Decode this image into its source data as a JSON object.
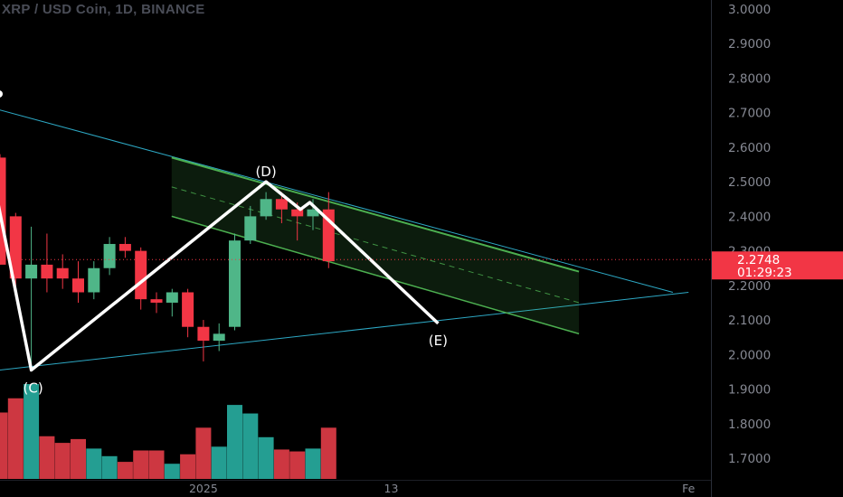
{
  "header": {
    "title": "XRP / USD Coin, 1D, BINANCE"
  },
  "price_badge": {
    "price": "2.2748",
    "countdown": "01:29:23",
    "color": "#f23645"
  },
  "wave_labels": [
    "(C)",
    "(D)",
    "(E)"
  ],
  "time_axis": {
    "ticks": [
      {
        "label": "2025",
        "bar": 13
      },
      {
        "label": "13",
        "bar": 25
      },
      {
        "label": "Fe",
        "bar": 44
      }
    ]
  },
  "colors": {
    "up": "#26a69a",
    "up_candle": "#4fb688",
    "down": "#f23645",
    "channel": "#4caf50",
    "trendline": "#2da8c4",
    "wave": "#ffffff",
    "background": "#000000",
    "axis_text": "#868993"
  },
  "chart_data": {
    "type": "candlestick",
    "title": "XRP / USD Coin, 1D, BINANCE",
    "y_axis": {
      "ticks": [
        1.7,
        1.8,
        1.9,
        2.0,
        2.1,
        2.2,
        2.3,
        2.4,
        2.5,
        2.6,
        2.7,
        2.8,
        2.9,
        3.0
      ],
      "range": [
        1.6,
        3.03
      ],
      "side": "right"
    },
    "x_axis": {
      "tick_labels": [
        "2025",
        "13",
        "Fe"
      ]
    },
    "last_price": 2.2748,
    "candles": [
      {
        "o": 2.57,
        "h": 2.58,
        "l": 2.26,
        "c": 2.26
      },
      {
        "o": 2.4,
        "h": 2.41,
        "l": 2.19,
        "c": 2.22
      },
      {
        "o": 2.22,
        "h": 2.37,
        "l": 1.96,
        "c": 2.26
      },
      {
        "o": 2.26,
        "h": 2.35,
        "l": 2.18,
        "c": 2.22
      },
      {
        "o": 2.25,
        "h": 2.29,
        "l": 2.19,
        "c": 2.22
      },
      {
        "o": 2.22,
        "h": 2.27,
        "l": 2.15,
        "c": 2.18
      },
      {
        "o": 2.18,
        "h": 2.27,
        "l": 2.16,
        "c": 2.25
      },
      {
        "o": 2.25,
        "h": 2.34,
        "l": 2.23,
        "c": 2.32
      },
      {
        "o": 2.32,
        "h": 2.34,
        "l": 2.28,
        "c": 2.3
      },
      {
        "o": 2.3,
        "h": 2.31,
        "l": 2.13,
        "c": 2.16
      },
      {
        "o": 2.16,
        "h": 2.18,
        "l": 2.12,
        "c": 2.15
      },
      {
        "o": 2.15,
        "h": 2.19,
        "l": 2.11,
        "c": 2.18
      },
      {
        "o": 2.18,
        "h": 2.19,
        "l": 2.05,
        "c": 2.08
      },
      {
        "o": 2.08,
        "h": 2.1,
        "l": 1.98,
        "c": 2.04
      },
      {
        "o": 2.04,
        "h": 2.09,
        "l": 2.01,
        "c": 2.06
      },
      {
        "o": 2.08,
        "h": 2.35,
        "l": 2.07,
        "c": 2.33
      },
      {
        "o": 2.33,
        "h": 2.43,
        "l": 2.32,
        "c": 2.4
      },
      {
        "o": 2.4,
        "h": 2.47,
        "l": 2.39,
        "c": 2.45
      },
      {
        "o": 2.45,
        "h": 2.47,
        "l": 2.38,
        "c": 2.42
      },
      {
        "o": 2.42,
        "h": 2.44,
        "l": 2.33,
        "c": 2.4
      },
      {
        "o": 2.4,
        "h": 2.45,
        "l": 2.36,
        "c": 2.42
      },
      {
        "o": 2.42,
        "h": 2.47,
        "l": 2.25,
        "c": 2.27
      }
    ],
    "volume_relative": [
      0.7,
      0.85,
      1.0,
      0.45,
      0.38,
      0.42,
      0.32,
      0.24,
      0.18,
      0.3,
      0.3,
      0.16,
      0.26,
      0.54,
      0.34,
      0.78,
      0.69,
      0.44,
      0.31,
      0.29,
      0.32,
      0.54
    ],
    "drawings": {
      "wave_points": [
        {
          "label": "(C)",
          "bar": 2,
          "price": 1.955
        },
        {
          "label": "(D)",
          "bar": 17,
          "price": 2.5
        },
        {
          "label": "(E)",
          "bar": 28,
          "price": 2.09
        }
      ],
      "channel": {
        "start_bar": 11,
        "end_bar": 37,
        "upper": [
          2.57,
          2.24
        ],
        "lower": [
          2.4,
          2.06
        ]
      },
      "trendlines": [
        {
          "from": {
            "bar": -1,
            "price": 2.72
          },
          "to": {
            "bar": 43,
            "price": 2.18
          }
        },
        {
          "from": {
            "bar": -1,
            "price": 1.95
          },
          "to": {
            "bar": 44,
            "price": 2.18
          }
        }
      ]
    }
  }
}
